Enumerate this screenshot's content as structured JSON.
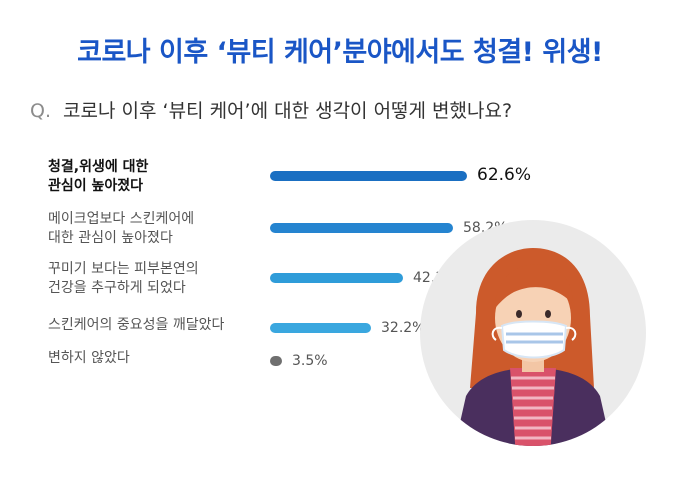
{
  "headline": "코로나 이후 ‘뷰티 케어’분야에서도 청결! 위생!",
  "question": {
    "prefix": "Q.",
    "text": "코로나 이후 ‘뷰티 케어’에 대한 생각이 어떻게 변했나요?"
  },
  "chart_data": {
    "type": "bar",
    "orientation": "horizontal",
    "categories": [
      "청결,위생에 대한\n관심이 높아졌다",
      "메이크업보다 스킨케어에\n대한 관심이 높아졌다",
      "꾸미기 보다는 피부본연의\n건강을 추구하게 되었다",
      "스킨케어의 중요성을 깨달았다",
      "변하지 않았다"
    ],
    "values": [
      62.6,
      58.2,
      42.3,
      32.2,
      3.5
    ],
    "value_labels": [
      "62.6%",
      "58.2%",
      "42.3%",
      "32.2%",
      "3.5%"
    ],
    "unit": "%",
    "xlim": [
      0,
      100
    ],
    "colors": [
      "#1a6fc2",
      "#2584d0",
      "#2f9cd9",
      "#3aa7df",
      "#6f6f6f"
    ]
  },
  "illustration": {
    "subject": "woman-wearing-face-mask",
    "backdrop_color": "#ebebeb"
  }
}
